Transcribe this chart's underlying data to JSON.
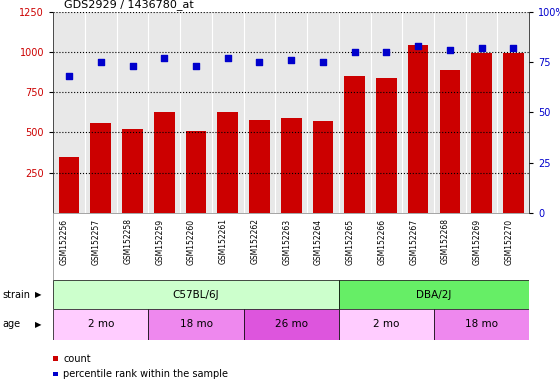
{
  "title": "GDS2929 / 1436780_at",
  "samples": [
    "GSM152256",
    "GSM152257",
    "GSM152258",
    "GSM152259",
    "GSM152260",
    "GSM152261",
    "GSM152262",
    "GSM152263",
    "GSM152264",
    "GSM152265",
    "GSM152266",
    "GSM152267",
    "GSM152268",
    "GSM152269",
    "GSM152270"
  ],
  "counts": [
    350,
    560,
    520,
    630,
    510,
    625,
    580,
    590,
    570,
    850,
    840,
    1040,
    890,
    990,
    995
  ],
  "percentiles": [
    68,
    75,
    73,
    77,
    73,
    77,
    75,
    76,
    75,
    80,
    80,
    83,
    81,
    82,
    82
  ],
  "bar_color": "#cc0000",
  "dot_color": "#0000cc",
  "ylim_left": [
    0,
    1250
  ],
  "ylim_right": [
    0,
    100
  ],
  "yticks_left": [
    250,
    500,
    750,
    1000,
    1250
  ],
  "yticks_right": [
    0,
    25,
    50,
    75,
    100
  ],
  "strain_groups": [
    {
      "label": "C57BL/6J",
      "start": 0,
      "end": 9,
      "color": "#ccffcc"
    },
    {
      "label": "DBA/2J",
      "start": 9,
      "end": 15,
      "color": "#66ee66"
    }
  ],
  "age_groups": [
    {
      "label": "2 mo",
      "start": 0,
      "end": 3,
      "color": "#ffccff"
    },
    {
      "label": "18 mo",
      "start": 3,
      "end": 6,
      "color": "#ee88ee"
    },
    {
      "label": "26 mo",
      "start": 6,
      "end": 9,
      "color": "#dd55dd"
    },
    {
      "label": "2 mo",
      "start": 9,
      "end": 12,
      "color": "#ffccff"
    },
    {
      "label": "18 mo",
      "start": 12,
      "end": 15,
      "color": "#ee88ee"
    }
  ],
  "legend_count_color": "#cc0000",
  "legend_pct_color": "#0000cc",
  "bg_color": "#ffffff",
  "plot_bg_color": "#e8e8e8",
  "label_bg_color": "#d8d8d8"
}
